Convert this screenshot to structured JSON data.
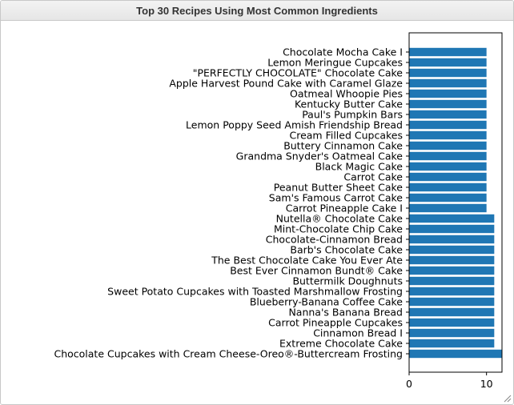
{
  "panel": {
    "title": "Top 30 Recipes Using Most Common Ingredients"
  },
  "colors": {
    "bar": "#1f77b4",
    "axis": "#000000"
  },
  "chart_data": {
    "type": "bar",
    "orientation": "horizontal",
    "title": "",
    "xlabel": "",
    "ylabel": "",
    "xlim": [
      0,
      12
    ],
    "xticks": [
      0,
      10
    ],
    "grid": false,
    "categories": [
      "Chocolate Mocha Cake I",
      "Lemon Meringue Cupcakes",
      "\"PERFECTLY CHOCOLATE\" Chocolate Cake",
      "Apple Harvest Pound Cake with Caramel Glaze",
      "Oatmeal Whoopie Pies",
      "Kentucky Butter Cake",
      "Paul's Pumpkin Bars",
      "Lemon Poppy Seed Amish Friendship Bread",
      "Cream Filled Cupcakes",
      "Buttery Cinnamon Cake",
      "Grandma Snyder's Oatmeal Cake",
      "Black Magic Cake",
      "Carrot Cake",
      "Peanut Butter Sheet Cake",
      "Sam's Famous Carrot Cake",
      "Carrot Pineapple Cake I",
      "Nutella® Chocolate Cake",
      "Mint-Chocolate Chip Cake",
      "Chocolate-Cinnamon Bread",
      "Barb's Chocolate Cake",
      "The Best Chocolate Cake You Ever Ate",
      "Best Ever Cinnamon Bundt® Cake",
      "Buttermilk Doughnuts",
      "Sweet Potato Cupcakes with Toasted Marshmallow Frosting",
      "Blueberry-Banana Coffee Cake",
      "Nanna's Banana Bread",
      "Carrot Pineapple Cupcakes",
      "Cinnamon Bread I",
      "Extreme Chocolate Cake",
      "Chocolate Cupcakes with Cream Cheese-Oreo®-Buttercream Frosting"
    ],
    "values": [
      10,
      10,
      10,
      10,
      10,
      10,
      10,
      10,
      10,
      10,
      10,
      10,
      10,
      10,
      10,
      10,
      11,
      11,
      11,
      11,
      11,
      11,
      11,
      11,
      11,
      11,
      11,
      11,
      11,
      12
    ]
  }
}
